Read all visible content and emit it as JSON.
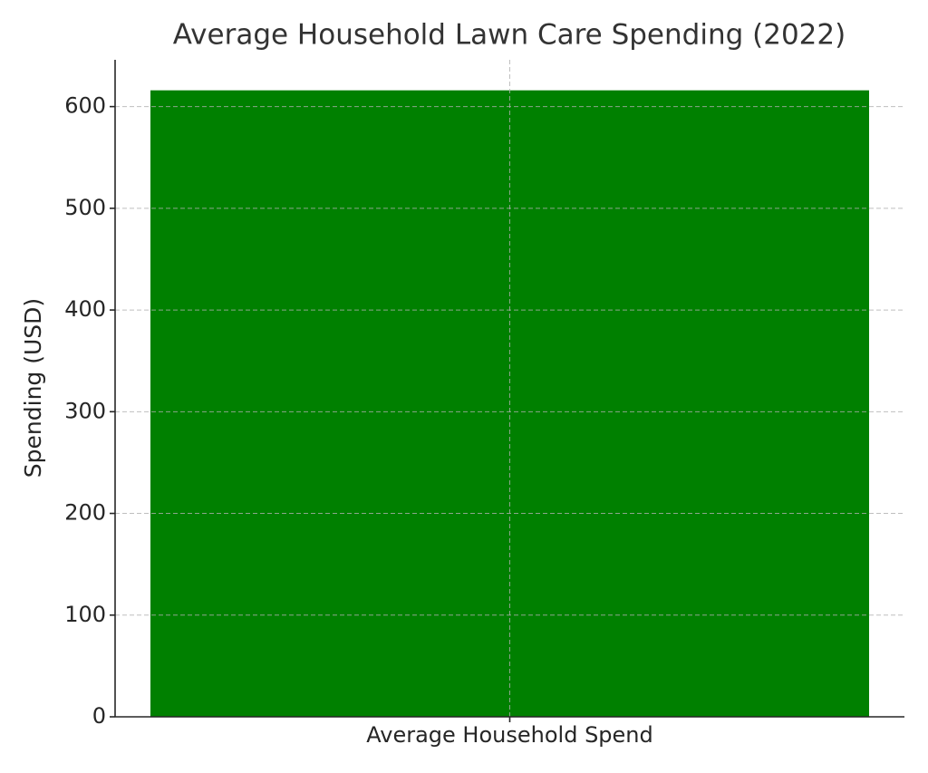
{
  "chart_data": {
    "type": "bar",
    "title": "Average Household Lawn Care Spending (2022)",
    "categories": [
      "Average Household Spend"
    ],
    "values": [
      616
    ],
    "color": "#008000",
    "y_label": "Spending (USD)",
    "ylim": [
      0,
      646
    ],
    "yticks": [
      0,
      100,
      200,
      300,
      400,
      500,
      600
    ],
    "grid": true
  }
}
